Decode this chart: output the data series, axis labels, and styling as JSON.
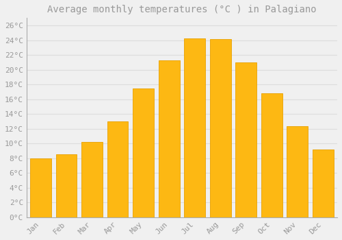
{
  "title": "Average monthly temperatures (°C ) in Palagiano",
  "months": [
    "Jan",
    "Feb",
    "Mar",
    "Apr",
    "May",
    "Jun",
    "Jul",
    "Aug",
    "Sep",
    "Oct",
    "Nov",
    "Dec"
  ],
  "values": [
    8.0,
    8.5,
    10.2,
    13.0,
    17.5,
    21.3,
    24.2,
    24.1,
    21.0,
    16.8,
    12.3,
    9.2
  ],
  "bar_color": "#FDB813",
  "bar_edge_color": "#E8A000",
  "background_color": "#F0F0F0",
  "grid_color": "#DDDDDD",
  "text_color": "#999999",
  "ylim": [
    0,
    27
  ],
  "yticks": [
    0,
    2,
    4,
    6,
    8,
    10,
    12,
    14,
    16,
    18,
    20,
    22,
    24,
    26
  ],
  "title_fontsize": 10,
  "tick_fontsize": 8,
  "bar_width": 0.82
}
